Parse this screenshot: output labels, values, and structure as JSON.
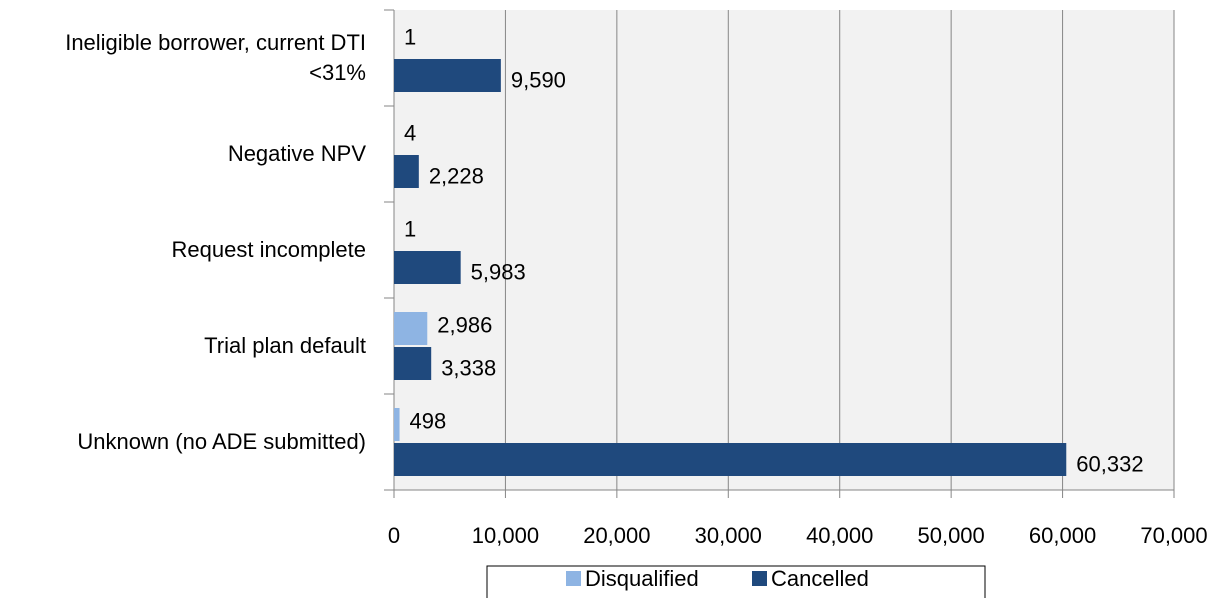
{
  "chart_data": {
    "type": "hbar",
    "categories": [
      "Ineligible borrower, current DTI <31%",
      "Negative NPV",
      "Request incomplete",
      "Trial plan default",
      "Unknown (no ADE submitted)"
    ],
    "series": [
      {
        "name": "Disqualified",
        "color": "#8eb4e3",
        "values": [
          1,
          4,
          1,
          2986,
          498
        ],
        "value_labels": [
          "1",
          "4",
          "1",
          "2,986",
          "498"
        ]
      },
      {
        "name": "Cancelled",
        "color": "#1f497d",
        "values": [
          9590,
          2228,
          5983,
          3338,
          60332
        ],
        "value_labels": [
          "9,590",
          "2,228",
          "5,983",
          "3,338",
          "60,332"
        ]
      }
    ],
    "xlim": [
      0,
      70000
    ],
    "xticks": [
      0,
      {
        "value": 10000,
        "label": "10,000"
      },
      {
        "value": 20000,
        "label": "20,000"
      },
      {
        "value": 30000,
        "label": "30,000"
      },
      {
        "value": 40000,
        "label": "40,000"
      },
      {
        "value": 50000,
        "label": "50,000"
      },
      {
        "value": 60000,
        "label": "60,000"
      },
      {
        "value": 70000,
        "label": "70,000"
      }
    ],
    "grid": true,
    "legend": "bottom"
  }
}
